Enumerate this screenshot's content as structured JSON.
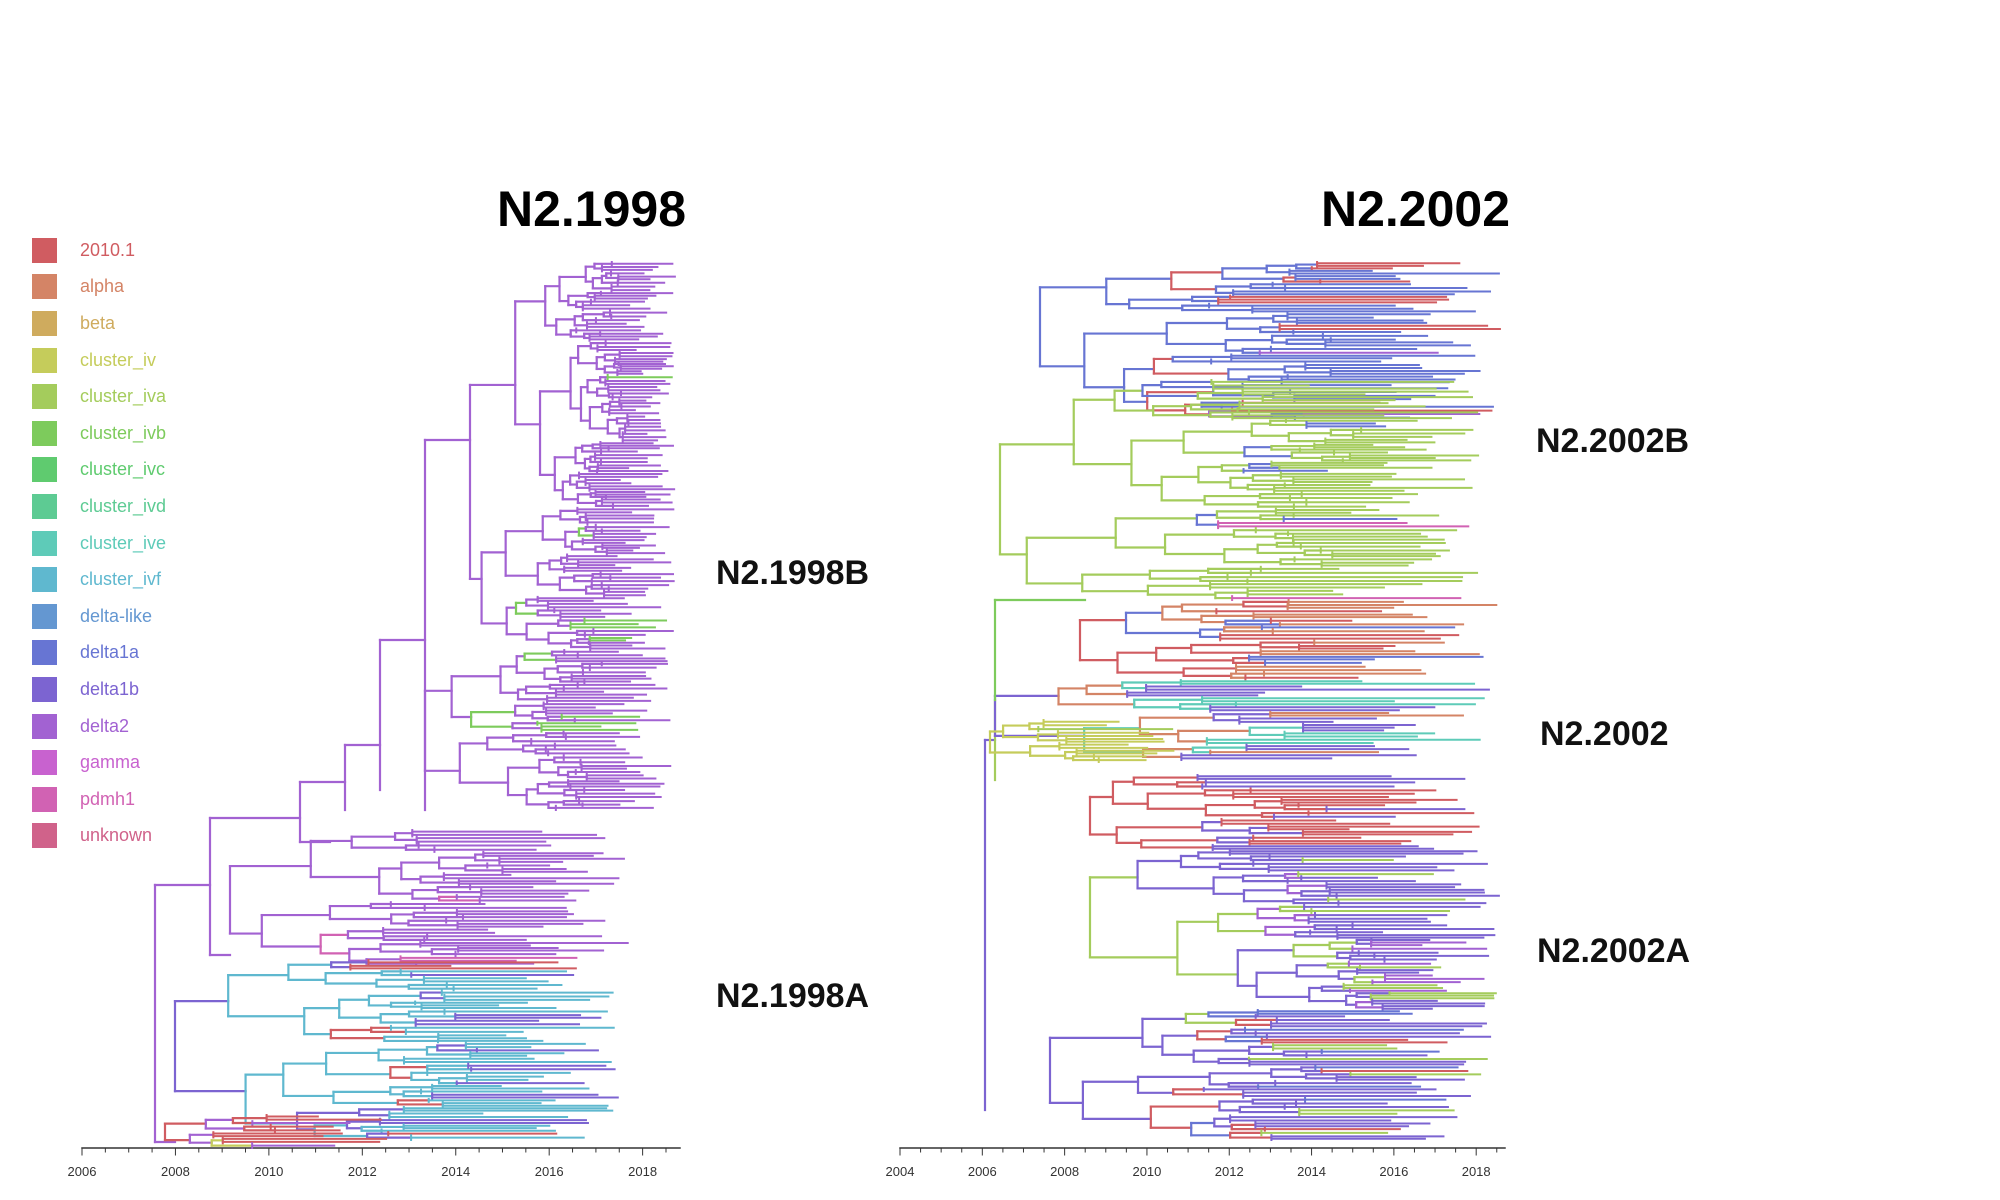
{
  "panels": [
    {
      "id": "n2-1998",
      "title": "N2.1998",
      "axis": {
        "min": 2006,
        "max": 2018.8,
        "ticks": [
          2006,
          2008,
          2010,
          2012,
          2014,
          2016,
          2018
        ]
      },
      "clade_labels": [
        "N2.1998B",
        "N2.1998A"
      ]
    },
    {
      "id": "n2-2002",
      "title": "N2.2002",
      "axis": {
        "min": 2004,
        "max": 2018.7,
        "ticks": [
          2004,
          2006,
          2008,
          2010,
          2012,
          2014,
          2016,
          2018
        ]
      },
      "clade_labels": [
        "N2.2002B",
        "N2.2002",
        "N2.2002A"
      ]
    }
  ],
  "legend": [
    {
      "label": "2010.1",
      "color": "#d05c61"
    },
    {
      "label": "alpha",
      "color": "#d48466"
    },
    {
      "label": "beta",
      "color": "#cfab5e"
    },
    {
      "label": "cluster_iv",
      "color": "#c5cc5b"
    },
    {
      "label": "cluster_iva",
      "color": "#a4cc5c"
    },
    {
      "label": "cluster_ivb",
      "color": "#7dcb5c"
    },
    {
      "label": "cluster_ivc",
      "color": "#5fcb6f"
    },
    {
      "label": "cluster_ivd",
      "color": "#5dcb93"
    },
    {
      "label": "cluster_ive",
      "color": "#5ecbb8"
    },
    {
      "label": "cluster_ivf",
      "color": "#5fb8cf"
    },
    {
      "label": "delta-like",
      "color": "#6497d1"
    },
    {
      "label": "delta1a",
      "color": "#6775d3"
    },
    {
      "label": "delta1b",
      "color": "#7c64d1"
    },
    {
      "label": "delta2",
      "color": "#a262d2"
    },
    {
      "label": "gamma",
      "color": "#c862cf"
    },
    {
      "label": "pdmh1",
      "color": "#d162b3"
    },
    {
      "label": "unknown",
      "color": "#d0628a"
    }
  ]
}
